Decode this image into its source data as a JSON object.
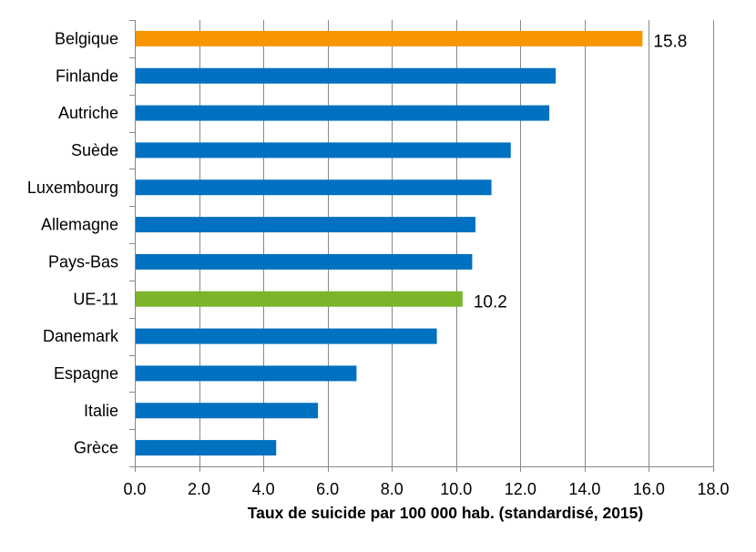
{
  "chart_data": {
    "type": "bar",
    "orientation": "horizontal",
    "categories": [
      "Belgique",
      "Finlande",
      "Autriche",
      "Suède",
      "Luxembourg",
      "Allemagne",
      "Pays-Bas",
      "UE-11",
      "Danemark",
      "Espagne",
      "Italie",
      "Grèce"
    ],
    "values": [
      15.8,
      13.1,
      12.9,
      11.7,
      11.1,
      10.6,
      10.5,
      10.2,
      9.4,
      6.9,
      5.7,
      4.4
    ],
    "data_labels": {
      "Belgique": "15.8",
      "UE-11": "10.2"
    },
    "xlabel": "Taux de suicide par 100 000 hab. (standardisé, 2015)",
    "xlim": [
      0,
      18
    ],
    "x_ticks": [
      "0.0",
      "2.0",
      "4.0",
      "6.0",
      "8.0",
      "10.0",
      "12.0",
      "14.0",
      "16.0",
      "18.0"
    ],
    "grid": "vertical",
    "legend": "none",
    "colors": {
      "default": "#0070c0",
      "Belgique": "#f79600",
      "UE-11": "#7cb52a",
      "grid": "#888888"
    }
  }
}
